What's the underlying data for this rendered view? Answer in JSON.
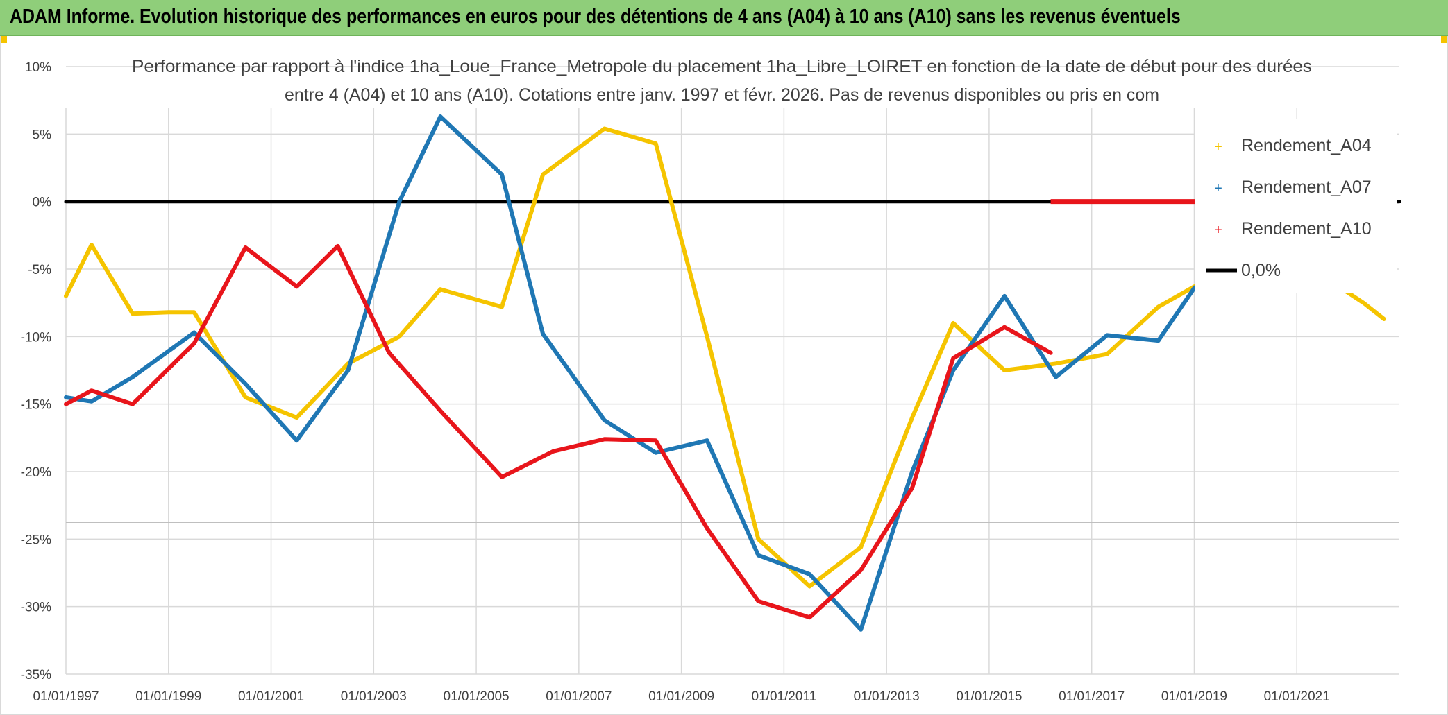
{
  "header": {
    "title": "ADAM Informe. Evolution historique des performances en euros pour des détentions de 4 ans (A04) à 10 ans (A10) sans les revenus éventuels"
  },
  "colors": {
    "banner": "#8fce7a",
    "A04": "#f5c400",
    "A07": "#1f77b4",
    "A10": "#e8151b",
    "zero": "#000000"
  },
  "chart_data": {
    "type": "line",
    "title_line1": "Performance par rapport à l'indice 1ha_Loue_France_Metropole  du placement 1ha_Libre_LOIRET en fonction de la date de début pour des durées",
    "title_line2": "entre 4 (A04) et 10 ans (A10). Cotations entre janv. 1997 et févr. 2026. Pas de revenus disponibles ou pris en com",
    "x_tick_labels": [
      "01/01/1997",
      "01/01/1999",
      "01/01/2001",
      "01/01/2003",
      "01/01/2005",
      "01/01/2007",
      "01/01/2009",
      "01/01/2011",
      "01/01/2013",
      "01/01/2015",
      "01/01/2017",
      "01/01/2019",
      "01/01/2021"
    ],
    "y_tick_labels": [
      "10%",
      "5%",
      "0%",
      "-5%",
      "-10%",
      "-15%",
      "-20%",
      "-25%",
      "-30%",
      "-35%"
    ],
    "y_ticks": [
      10,
      5,
      0,
      -5,
      -10,
      -15,
      -20,
      -25,
      -30,
      -35
    ],
    "xlim": [
      1997.0,
      2023.0
    ],
    "ylim": [
      -35,
      10
    ],
    "grid": true,
    "legend_position": "top-right",
    "legend": [
      "Rendement_A04",
      "Rendement_A07",
      "Rendement_A10",
      "0,0%"
    ],
    "series": [
      {
        "name": "Rendement_A04",
        "x": [
          1997.0,
          1997.5,
          1998.3,
          1999.0,
          1999.5,
          2000.5,
          2001.5,
          2002.5,
          2003.5,
          2004.3,
          2005.5,
          2006.3,
          2007.5,
          2008.5,
          2009.5,
          2010.5,
          2011.5,
          2012.5,
          2013.5,
          2014.3,
          2015.3,
          2016.3,
          2017.3,
          2018.3,
          2019.0,
          2019.5,
          2020.3,
          2021.3,
          2022.3,
          2022.7
        ],
        "values": [
          -7,
          -3.2,
          -8.3,
          -8.2,
          -8.2,
          -14.5,
          -16,
          -12,
          -10,
          -6.5,
          -7.8,
          2,
          5.4,
          4.3,
          -10,
          -25,
          -28.5,
          -25.6,
          -16,
          -9,
          -12.5,
          -12,
          -11.3,
          -7.8,
          -6.3,
          -5,
          -4.5,
          -5,
          -7.5,
          -8.7
        ]
      },
      {
        "name": "Rendement_A07",
        "x": [
          1997.0,
          1997.5,
          1998.3,
          1999.5,
          2000.5,
          2001.5,
          2002.5,
          2003.5,
          2004.3,
          2005.5,
          2006.3,
          2007.5,
          2008.5,
          2009.5,
          2010.5,
          2011.5,
          2012.5,
          2013.5,
          2014.3,
          2015.3,
          2016.3,
          2017.3,
          2018.3,
          2019.0,
          2019.5
        ],
        "values": [
          -14.5,
          -14.8,
          -13,
          -9.7,
          -13.5,
          -17.7,
          -12.5,
          0,
          6.3,
          2,
          -9.8,
          -16.2,
          -18.6,
          -17.7,
          -26.2,
          -27.6,
          -31.7,
          -20,
          -12.5,
          -7,
          -13,
          -9.9,
          -10.3,
          -6.4,
          -5
        ]
      },
      {
        "name": "Rendement_A10",
        "x": [
          1997.0,
          1997.5,
          1998.3,
          1999.5,
          2000.5,
          2001.5,
          2002.3,
          2003.3,
          2004.3,
          2005.5,
          2006.5,
          2007.5,
          2008.5,
          2009.5,
          2010.5,
          2011.5,
          2012.5,
          2013.5,
          2014.3,
          2015.3,
          2016.2
        ],
        "values": [
          -15,
          -14,
          -15,
          -10.5,
          -3.4,
          -6.3,
          -3.3,
          -11.2,
          -15.5,
          -20.4,
          -18.5,
          -17.6,
          -17.7,
          -24.2,
          -29.6,
          -30.8,
          -27.3,
          -21.2,
          -11.6,
          -9.3,
          -11.2
        ]
      },
      {
        "name": "0,0%",
        "x": [
          1997.0,
          2023.0
        ],
        "values": [
          0,
          0
        ]
      }
    ]
  }
}
